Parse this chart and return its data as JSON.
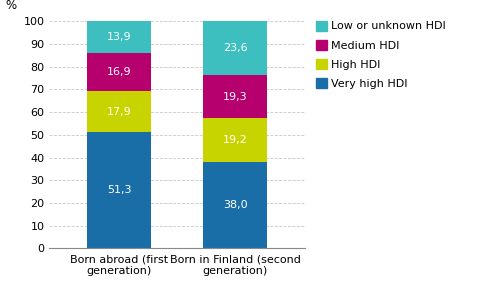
{
  "categories": [
    "Born abroad (first\ngeneration)",
    "Born in Finland (second\ngeneration)"
  ],
  "series": [
    {
      "label": "Very high HDI",
      "values": [
        51.3,
        38.0
      ],
      "color": "#1a6ea8"
    },
    {
      "label": "High HDI",
      "values": [
        17.9,
        19.2
      ],
      "color": "#c8d400"
    },
    {
      "label": "Medium HDI",
      "values": [
        16.9,
        19.3
      ],
      "color": "#b5006e"
    },
    {
      "label": "Low or unknown HDI",
      "values": [
        13.9,
        23.6
      ],
      "color": "#3dbfbf"
    }
  ],
  "ylabel": "%",
  "ylim": [
    0,
    100
  ],
  "yticks": [
    0,
    10,
    20,
    30,
    40,
    50,
    60,
    70,
    80,
    90,
    100
  ],
  "bar_width": 0.55,
  "background_color": "#ffffff",
  "grid_color": "#c8c8c8",
  "label_fontsize": 8,
  "tick_fontsize": 8,
  "ylabel_fontsize": 8.5,
  "legend_fontsize": 8
}
